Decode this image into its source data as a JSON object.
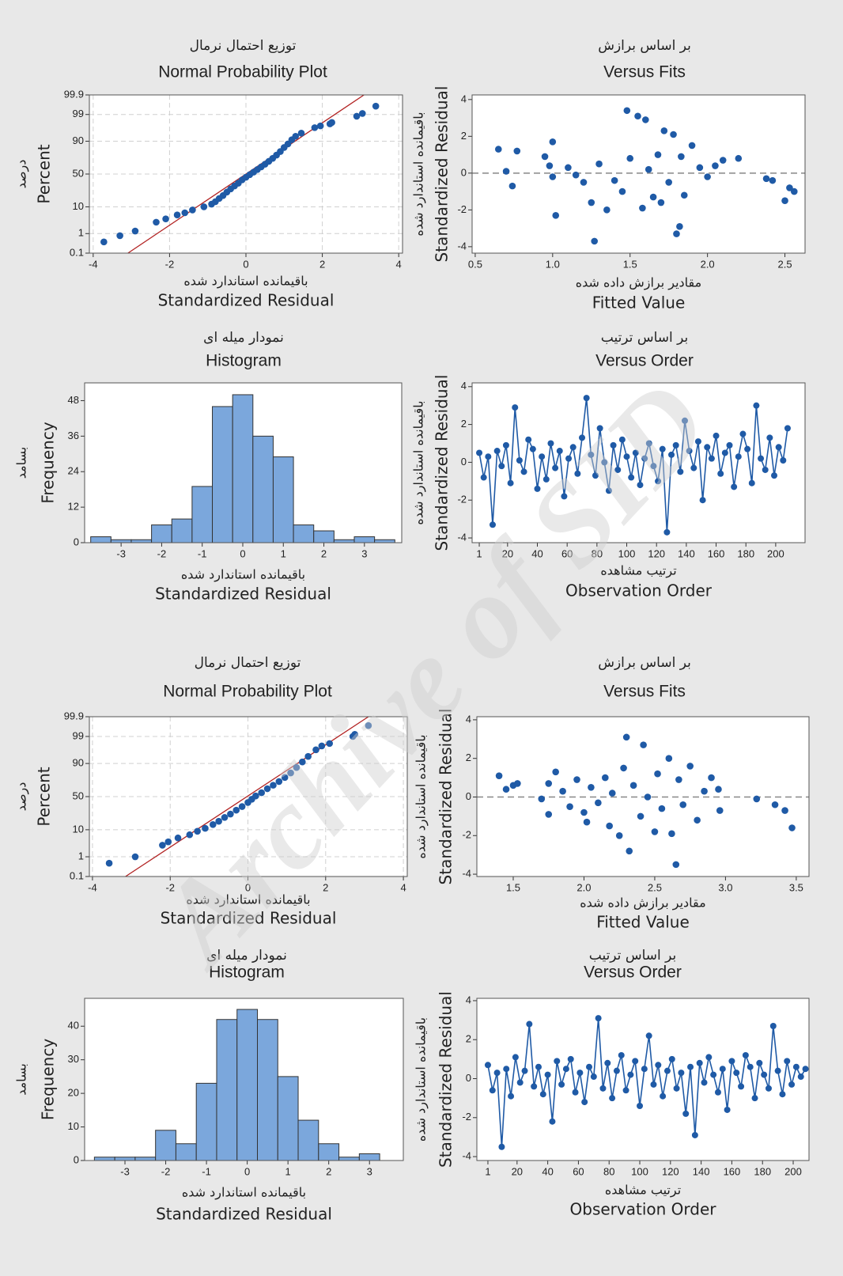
{
  "watermark": "Archive of SID",
  "chart_data": [
    {
      "type": "scatter",
      "yscale": "probability",
      "title_fa": "توزیع احتمال نرمال",
      "title": "Normal Probability Plot",
      "xlabel_fa": "باقیمانده استاندارد شده",
      "xlabel": "Standardized Residual",
      "ylabel_fa": "درصد",
      "ylabel": "Percent",
      "xlim": [
        -4.1,
        4.1
      ],
      "xticks": [
        -4,
        -2,
        0,
        2,
        4
      ],
      "ylim": [
        0.1,
        99.9
      ],
      "yticks": [
        0.1,
        1,
        10,
        50,
        90,
        99,
        99.9
      ],
      "grid": true,
      "color": "#1f5aa6",
      "x": [
        -3.72,
        -3.3,
        -2.9,
        -2.35,
        -2.1,
        -1.8,
        -1.6,
        -1.4,
        -1.1,
        -0.9,
        -0.8,
        -0.7,
        -0.6,
        -0.5,
        -0.4,
        -0.3,
        -0.2,
        -0.1,
        0.0,
        0.1,
        0.2,
        0.3,
        0.4,
        0.5,
        0.6,
        0.7,
        0.8,
        0.9,
        1.0,
        1.1,
        1.2,
        1.3,
        1.45,
        1.8,
        1.95,
        2.2,
        2.25,
        2.9,
        3.05,
        3.4
      ],
      "values": [
        0.4,
        0.8,
        1.3,
        3,
        4,
        5.5,
        6.5,
        8,
        10,
        12,
        14,
        17,
        20,
        24,
        28,
        32,
        36,
        41,
        45,
        49,
        53,
        57,
        61,
        65,
        69,
        73,
        77,
        81,
        85,
        88,
        91,
        93,
        94.5,
        96.5,
        97,
        97.5,
        97.8,
        98.8,
        99.1,
        99.6
      ],
      "fit_line": {
        "x": [
          -3.09,
          3.09
        ],
        "values": [
          0.1,
          99.9
        ],
        "color": "#b22222"
      }
    },
    {
      "type": "scatter",
      "title_fa": "بر اساس برازش",
      "title": "Versus Fits",
      "xlabel_fa": "مقادیر برازش داده شده",
      "xlabel": "Fitted Value",
      "ylabel_fa": "باقیمانده استاندارد شده",
      "ylabel": "Standardized Residual",
      "xlim": [
        0.48,
        2.63
      ],
      "xticks": [
        0.5,
        {
          "value": 1,
          "label": "1.0"
        },
        1.5,
        {
          "value": 2,
          "label": "2.0"
        },
        2.5
      ],
      "ylim": [
        -4.35,
        4.25
      ],
      "yticks": [
        -4,
        -2,
        0,
        2,
        4
      ],
      "hline": 0,
      "color": "#1f5aa6",
      "x": [
        0.65,
        0.7,
        0.74,
        0.77,
        0.95,
        0.98,
        1.0,
        1.02,
        1.0,
        1.1,
        1.15,
        1.2,
        1.25,
        1.27,
        1.3,
        1.35,
        1.4,
        1.45,
        1.48,
        1.5,
        1.55,
        1.58,
        1.6,
        1.62,
        1.65,
        1.68,
        1.7,
        1.72,
        1.75,
        1.78,
        1.8,
        1.82,
        1.83,
        1.85,
        1.9,
        1.95,
        2.0,
        2.05,
        2.1,
        2.2,
        2.38,
        2.42,
        2.5,
        2.53,
        2.56
      ],
      "values": [
        1.3,
        0.1,
        -0.7,
        1.2,
        0.9,
        0.4,
        1.7,
        -2.3,
        -0.2,
        0.3,
        -0.1,
        -0.5,
        -1.6,
        -3.7,
        0.5,
        -2.0,
        -0.4,
        -1.0,
        3.4,
        0.8,
        3.1,
        -1.9,
        2.9,
        0.2,
        -1.3,
        1.0,
        -1.6,
        2.3,
        -0.5,
        2.1,
        -3.3,
        -2.9,
        0.9,
        -1.2,
        1.5,
        0.3,
        -0.2,
        0.4,
        0.7,
        0.8,
        -0.3,
        -0.4,
        -1.5,
        -0.8,
        -1.0
      ]
    },
    {
      "type": "histogram",
      "title_fa": "نمودار میله ای",
      "title": "Histogram",
      "xlabel_fa": "باقیمانده استاندارد شده",
      "xlabel": "Standardized Residual",
      "ylabel_fa": "بسامد",
      "ylabel": "Frequency",
      "xlim": [
        -3.9,
        3.92
      ],
      "xticks": [
        -3,
        -2,
        -1,
        0,
        1,
        2,
        3
      ],
      "ylim": [
        0,
        54
      ],
      "yticks": [
        0,
        12,
        24,
        36,
        48
      ],
      "color": "#7ba7dc",
      "bins": [
        -3.75,
        -3.25,
        -2.75,
        -2.25,
        -1.75,
        -1.25,
        -0.75,
        -0.25,
        0.25,
        0.75,
        1.25,
        1.75,
        2.25,
        2.75,
        3.25,
        3.75
      ],
      "values": [
        2,
        1,
        1,
        6,
        8,
        19,
        46,
        50,
        36,
        29,
        6,
        4,
        1,
        2,
        1
      ]
    },
    {
      "type": "line",
      "markers": true,
      "title_fa": "بر اساس ترتیب",
      "title": "Versus Order",
      "xlabel_fa": "ترتیب مشاهده",
      "xlabel": "Observation Order",
      "ylabel_fa": "باقیمانده استاندارد شده",
      "ylabel": "Standardized Residual",
      "xlim": [
        -3.8,
        219.7
      ],
      "xticks": [
        1,
        20,
        40,
        60,
        80,
        100,
        120,
        140,
        160,
        180,
        200
      ],
      "ylim": [
        -4.25,
        4.2
      ],
      "yticks": [
        -4,
        -2,
        0,
        2,
        4
      ],
      "color": "#1f5aa6",
      "x": [
        1,
        4,
        7,
        10,
        13,
        16,
        19,
        22,
        25,
        28,
        31,
        34,
        37,
        40,
        43,
        46,
        49,
        52,
        55,
        58,
        61,
        64,
        67,
        70,
        73,
        76,
        79,
        82,
        85,
        88,
        91,
        94,
        97,
        100,
        103,
        106,
        109,
        112,
        115,
        118,
        121,
        124,
        127,
        130,
        133,
        136,
        139,
        142,
        145,
        148,
        151,
        154,
        157,
        160,
        163,
        166,
        169,
        172,
        175,
        178,
        181,
        184,
        187,
        190,
        193,
        196,
        199,
        202,
        205,
        208
      ],
      "values": [
        0.5,
        -0.8,
        0.3,
        -3.3,
        0.6,
        -0.2,
        0.9,
        -1.1,
        2.9,
        0.1,
        -0.5,
        1.2,
        0.7,
        -1.4,
        0.3,
        -0.9,
        1.0,
        -0.3,
        0.6,
        -1.8,
        0.2,
        0.8,
        -0.6,
        1.3,
        3.4,
        0.4,
        -0.7,
        1.8,
        0.0,
        -1.5,
        0.9,
        -0.4,
        1.2,
        0.3,
        -0.8,
        0.5,
        -1.2,
        0.2,
        1.0,
        -0.2,
        -1.0,
        0.7,
        -3.7,
        0.4,
        0.9,
        -0.5,
        2.2,
        0.6,
        -0.3,
        1.1,
        -2.0,
        0.8,
        0.2,
        1.4,
        -0.6,
        0.5,
        0.9,
        -1.3,
        0.3,
        1.5,
        0.7,
        -1.1,
        3.0,
        0.2,
        -0.4,
        1.3,
        -0.7,
        0.8,
        0.1,
        1.8
      ]
    },
    {
      "type": "scatter",
      "yscale": "probability",
      "title_fa": "توزیع احتمال نرمال",
      "title": "Normal Probability Plot",
      "xlabel_fa": "باقیمانده استاندارد شده",
      "xlabel": "Standardized Residual",
      "ylabel_fa": "درصد",
      "ylabel": "Percent",
      "xlim": [
        -4.08,
        4.1
      ],
      "xticks": [
        -4,
        -2,
        0,
        2,
        4
      ],
      "ylim": [
        0.1,
        99.9
      ],
      "yticks": [
        0.1,
        1,
        10,
        50,
        90,
        99,
        99.9
      ],
      "grid": true,
      "color": "#1f5aa6",
      "x": [
        -3.57,
        -2.9,
        -2.2,
        -2.05,
        -1.8,
        -1.5,
        -1.3,
        -1.1,
        -0.9,
        -0.75,
        -0.6,
        -0.45,
        -0.3,
        -0.15,
        0.0,
        0.1,
        0.2,
        0.35,
        0.5,
        0.65,
        0.8,
        0.95,
        1.1,
        1.25,
        1.4,
        1.55,
        1.75,
        1.9,
        2.1,
        2.7,
        2.75,
        3.1
      ],
      "values": [
        0.5,
        1.0,
        3,
        4,
        5.5,
        7,
        9,
        11,
        14,
        17,
        21,
        25,
        30,
        35,
        41,
        46,
        51,
        56,
        62,
        67,
        72,
        77,
        82,
        87,
        91,
        94,
        96.5,
        97.5,
        98,
        99,
        99.2,
        99.7
      ],
      "fit_line": {
        "x": [
          -3.15,
          3.1
        ],
        "values": [
          0.1,
          99.9
        ],
        "color": "#b22222"
      }
    },
    {
      "type": "scatter",
      "title_fa": "بر اساس برازش",
      "title": "Versus Fits",
      "xlabel_fa": "مقادیر برازش داده شده",
      "xlabel": "Fitted Value",
      "ylabel_fa": "باقیمانده استاندارد شده",
      "ylabel": "Standardized Residual",
      "xlim": [
        1.243,
        3.59
      ],
      "xticks": [
        1.5,
        {
          "value": 2,
          "label": "2.0"
        },
        2.5,
        {
          "value": 3,
          "label": "3.0"
        },
        3.5
      ],
      "ylim": [
        -4.12,
        4.16
      ],
      "yticks": [
        -4,
        -2,
        0,
        2,
        4
      ],
      "hline": 0,
      "color": "#1f5aa6",
      "x": [
        1.4,
        1.45,
        1.5,
        1.53,
        1.7,
        1.75,
        1.75,
        1.8,
        1.85,
        1.9,
        1.95,
        2.0,
        2.02,
        2.05,
        2.1,
        2.15,
        2.18,
        2.2,
        2.25,
        2.28,
        2.3,
        2.32,
        2.35,
        2.4,
        2.42,
        2.45,
        2.5,
        2.52,
        2.55,
        2.6,
        2.62,
        2.65,
        2.67,
        2.7,
        2.75,
        2.8,
        2.85,
        2.9,
        2.95,
        2.96,
        3.22,
        3.35,
        3.42,
        3.47
      ],
      "values": [
        1.1,
        0.4,
        0.6,
        0.7,
        -0.1,
        0.7,
        -0.9,
        1.3,
        0.3,
        -0.5,
        0.9,
        -0.8,
        -1.3,
        0.5,
        -0.3,
        1.0,
        -1.5,
        0.2,
        -2.0,
        1.5,
        3.1,
        -2.8,
        0.6,
        -1.0,
        2.7,
        0.0,
        -1.8,
        1.2,
        -0.6,
        2.0,
        -1.9,
        -3.5,
        0.9,
        -0.4,
        1.6,
        -1.2,
        0.3,
        1.0,
        0.4,
        -0.7,
        -0.1,
        -0.4,
        -0.7,
        -1.6
      ]
    },
    {
      "type": "histogram",
      "title_fa": "نمودار میله ای",
      "title": "Histogram",
      "xlabel_fa": "باقیمانده استاندارد شده",
      "xlabel": "Standardized Residual",
      "ylabel_fa": "بسامد",
      "ylabel": "Frequency",
      "xlim": [
        -3.99,
        3.83
      ],
      "xticks": [
        -3,
        -2,
        -1,
        0,
        1,
        2,
        3
      ],
      "ylim": [
        0,
        48.3
      ],
      "yticks": [
        0,
        10,
        20,
        30,
        40
      ],
      "color": "#7ba7dc",
      "bins": [
        -3.75,
        -3.25,
        -2.75,
        -2.25,
        -1.75,
        -1.25,
        -0.75,
        -0.25,
        0.25,
        0.75,
        1.25,
        1.75,
        2.25,
        2.75,
        3.25
      ],
      "values": [
        1,
        1,
        1,
        9,
        5,
        23,
        42,
        45,
        42,
        25,
        12,
        5,
        1,
        2
      ]
    },
    {
      "type": "line",
      "markers": true,
      "title_fa": "بر اساس ترتیب",
      "title": "Versus Order",
      "xlabel_fa": "ترتیب مشاهده",
      "xlabel": "Observation Order",
      "ylabel_fa": "باقیمانده استاندارد شده",
      "ylabel": "Standardized Residual",
      "xlim": [
        -6.2,
        210.3
      ],
      "xticks": [
        1,
        20,
        40,
        60,
        80,
        100,
        120,
        140,
        160,
        180,
        200
      ],
      "ylim": [
        -4.2,
        4.12
      ],
      "yticks": [
        -4,
        -2,
        0,
        2,
        4
      ],
      "color": "#1f5aa6",
      "x": [
        1,
        4,
        7,
        10,
        13,
        16,
        19,
        22,
        25,
        28,
        31,
        34,
        37,
        40,
        43,
        46,
        49,
        52,
        55,
        58,
        61,
        64,
        67,
        70,
        73,
        76,
        79,
        82,
        85,
        88,
        91,
        94,
        97,
        100,
        103,
        106,
        109,
        112,
        115,
        118,
        121,
        124,
        127,
        130,
        133,
        136,
        139,
        142,
        145,
        148,
        151,
        154,
        157,
        160,
        163,
        166,
        169,
        172,
        175,
        178,
        181,
        184,
        187,
        190,
        193,
        196,
        199,
        202,
        205,
        208
      ],
      "values": [
        0.7,
        -0.6,
        0.3,
        -3.5,
        0.5,
        -0.9,
        1.1,
        -0.2,
        0.4,
        2.8,
        -0.4,
        0.6,
        -0.8,
        0.2,
        -2.2,
        0.9,
        -0.3,
        0.5,
        1.0,
        -0.7,
        0.3,
        -1.2,
        0.6,
        0.1,
        3.1,
        -0.5,
        0.8,
        -1.0,
        0.4,
        1.2,
        -0.6,
        0.2,
        0.9,
        -1.4,
        0.5,
        2.2,
        -0.3,
        0.7,
        -0.9,
        0.4,
        1.0,
        -0.5,
        0.3,
        -1.8,
        0.6,
        -2.9,
        0.8,
        -0.2,
        1.1,
        0.2,
        -0.7,
        0.5,
        -1.6,
        0.9,
        0.3,
        -0.4,
        1.2,
        0.6,
        -1.0,
        0.8,
        0.2,
        -0.5,
        2.7,
        0.4,
        -0.8,
        0.9,
        -0.3,
        0.6,
        0.1,
        0.5
      ]
    }
  ]
}
